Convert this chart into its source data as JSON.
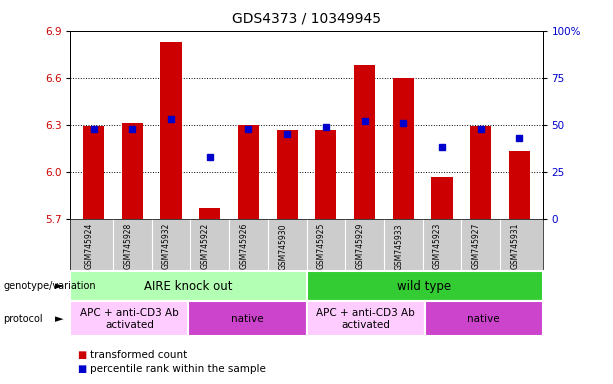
{
  "title": "GDS4373 / 10349945",
  "samples": [
    "GSM745924",
    "GSM745928",
    "GSM745932",
    "GSM745922",
    "GSM745926",
    "GSM745930",
    "GSM745925",
    "GSM745929",
    "GSM745933",
    "GSM745923",
    "GSM745927",
    "GSM745931"
  ],
  "transformed_count": [
    6.29,
    6.31,
    6.83,
    5.77,
    6.3,
    6.27,
    6.27,
    6.68,
    6.6,
    5.97,
    6.29,
    6.13
  ],
  "percentile_rank": [
    48,
    48,
    53,
    33,
    48,
    45,
    49,
    52,
    51,
    38,
    48,
    43
  ],
  "ylim_left": [
    5.7,
    6.9
  ],
  "ylim_right": [
    0,
    100
  ],
  "yticks_left": [
    5.7,
    6.0,
    6.3,
    6.6,
    6.9
  ],
  "yticks_right": [
    0,
    25,
    50,
    75,
    100
  ],
  "grid_values": [
    6.0,
    6.3,
    6.6
  ],
  "bar_color": "#cc0000",
  "dot_color": "#0000cc",
  "bar_bottom": 5.7,
  "genotype_groups": [
    {
      "label": "AIRE knock out",
      "start": 0,
      "end": 6,
      "color": "#b3ffb3"
    },
    {
      "label": "wild type",
      "start": 6,
      "end": 12,
      "color": "#33cc33"
    }
  ],
  "protocol_groups": [
    {
      "label": "APC + anti-CD3 Ab\nactivated",
      "start": 0,
      "end": 3,
      "color": "#ffccff"
    },
    {
      "label": "native",
      "start": 3,
      "end": 6,
      "color": "#cc44cc"
    },
    {
      "label": "APC + anti-CD3 Ab\nactivated",
      "start": 6,
      "end": 9,
      "color": "#ffccff"
    },
    {
      "label": "native",
      "start": 9,
      "end": 12,
      "color": "#cc44cc"
    }
  ],
  "legend_items": [
    {
      "label": "transformed count",
      "color": "#cc0000"
    },
    {
      "label": "percentile rank within the sample",
      "color": "#0000cc"
    }
  ],
  "left_label_color": "#cc0000",
  "right_label_color": "#0000cc",
  "title_fontsize": 10,
  "tick_fontsize": 7.5,
  "bar_width": 0.55,
  "sample_bg_color": "#cccccc",
  "annotation_fontsize": 8,
  "proto_fontsize": 7.5,
  "geno_fontsize": 8.5,
  "legend_fontsize": 7.5
}
